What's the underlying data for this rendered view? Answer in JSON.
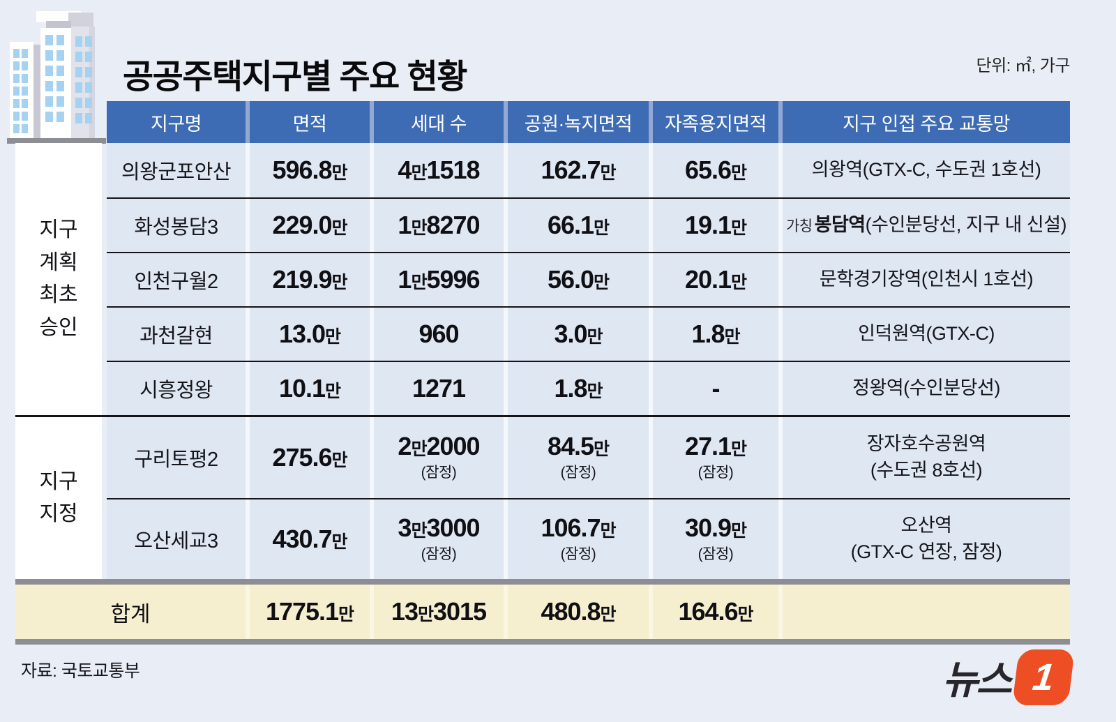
{
  "title": "공공주택지구별 주요 현황",
  "unit_note": "단위: ㎡, 가구",
  "source": "자료: 국토교통부",
  "logo": {
    "text": "뉴스",
    "badge": "1"
  },
  "colors": {
    "page_bg": "#e9edf6",
    "header_bg": "#3e6cb4",
    "cell_bg": "#dfe7f3",
    "total_bg": "#f6efcf",
    "divider_gray": "#8d8d94",
    "logo_orange": "#ee4e23"
  },
  "icon": "apartment-building-icon",
  "chart_data": {
    "type": "table",
    "title": "공공주택지구별 주요 현황",
    "unit": "㎡, 가구",
    "columns": [
      "지구명",
      "면적",
      "세대 수",
      "공원·녹지면적",
      "자족용지면적",
      "지구 인접 주요 교통망"
    ],
    "row_groups": [
      {
        "label": "지구 계획 최초 승인",
        "label_lines": [
          "지구",
          "계획",
          "최초",
          "승인"
        ],
        "rows": [
          {
            "name": "의왕군포안산",
            "area": "596.8만",
            "households": "4만1518",
            "park_green_area": "162.7만",
            "self_sufficiency_area": "65.6만",
            "transit": {
              "main": "의왕역(GTX-C, 수도권 1호선)"
            }
          },
          {
            "name": "화성봉담3",
            "area": "229.0만",
            "households": "1만8270",
            "park_green_area": "66.1만",
            "self_sufficiency_area": "19.1만",
            "transit": {
              "prefix": "가칭",
              "station_bold": "봉담역",
              "main": "(수인분당선, 지구 내 신설)"
            }
          },
          {
            "name": "인천구월2",
            "area": "219.9만",
            "households": "1만5996",
            "park_green_area": "56.0만",
            "self_sufficiency_area": "20.1만",
            "transit": {
              "main": "문학경기장역(인천시 1호선)"
            }
          },
          {
            "name": "과천갈현",
            "area": "13.0만",
            "households": "960",
            "park_green_area": "3.0만",
            "self_sufficiency_area": "1.8만",
            "transit": {
              "main": "인덕원역(GTX-C)"
            }
          },
          {
            "name": "시흥정왕",
            "area": "10.1만",
            "households": "1271",
            "park_green_area": "1.8만",
            "self_sufficiency_area": "-",
            "transit": {
              "main": "정왕역(수인분당선)"
            }
          }
        ]
      },
      {
        "label": "지구 지정",
        "label_lines": [
          "지구",
          "지정"
        ],
        "rows": [
          {
            "name": "구리토평2",
            "area": "275.6만",
            "households": "2만2000",
            "households_note": "(잠정)",
            "park_green_area": "84.5만",
            "park_note": "(잠정)",
            "self_sufficiency_area": "27.1만",
            "self_note": "(잠정)",
            "transit": {
              "main": "장자호수공원역",
              "line2": "(수도권 8호선)"
            }
          },
          {
            "name": "오산세교3",
            "area": "430.7만",
            "households": "3만3000",
            "households_note": "(잠정)",
            "park_green_area": "106.7만",
            "park_note": "(잠정)",
            "self_sufficiency_area": "30.9만",
            "self_note": "(잠정)",
            "transit": {
              "main": "오산역",
              "line2": "(GTX-C 연장, 잠정)"
            }
          }
        ]
      }
    ],
    "total_row": {
      "label": "합계",
      "area": "1775.1만",
      "households": "13만3015",
      "park_green_area": "480.8만",
      "self_sufficiency_area": "164.6만",
      "transit": ""
    }
  }
}
